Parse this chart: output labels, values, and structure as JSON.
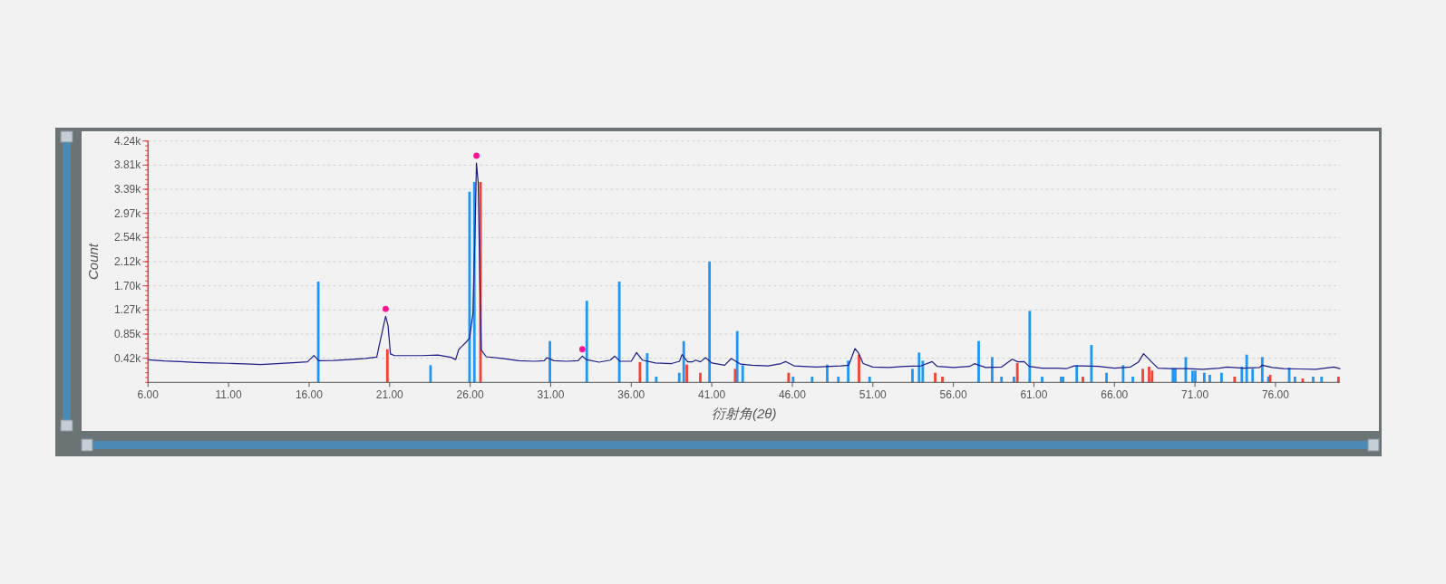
{
  "chart_data": {
    "type": "line",
    "xlabel": "衍射角(2θ)",
    "ylabel": "Count",
    "xlim": [
      6,
      80
    ],
    "ylim": [
      0,
      4238
    ],
    "xticks": [
      {
        "value": 6,
        "label": "6.00"
      },
      {
        "value": 11,
        "label": "11.00"
      },
      {
        "value": 16,
        "label": "16.00"
      },
      {
        "value": 21,
        "label": "21.00"
      },
      {
        "value": 26,
        "label": "26.00"
      },
      {
        "value": 31,
        "label": "31.00"
      },
      {
        "value": 36,
        "label": "36.00"
      },
      {
        "value": 41,
        "label": "41.00"
      },
      {
        "value": 46,
        "label": "46.00"
      },
      {
        "value": 51,
        "label": "51.00"
      },
      {
        "value": 56,
        "label": "56.00"
      },
      {
        "value": 61,
        "label": "61.00"
      },
      {
        "value": 66,
        "label": "66.00"
      },
      {
        "value": 71,
        "label": "71.00"
      },
      {
        "value": 76,
        "label": "76.00"
      }
    ],
    "yticks": [
      {
        "value": 423.8,
        "label": "0.42k"
      },
      {
        "value": 847.6,
        "label": "0.85k"
      },
      {
        "value": 1271.4,
        "label": "1.27k"
      },
      {
        "value": 1695.2,
        "label": "1.70k"
      },
      {
        "value": 2119,
        "label": "2.12k"
      },
      {
        "value": 2542.8,
        "label": "2.54k"
      },
      {
        "value": 2966.6,
        "label": "2.97k"
      },
      {
        "value": 3390.4,
        "label": "3.39k"
      },
      {
        "value": 3814.2,
        "label": "3.81k"
      },
      {
        "value": 4238,
        "label": "4.24k"
      }
    ],
    "grid": "y",
    "series": [
      {
        "type": "bar",
        "color": "#2196f3",
        "x": [
          16.57,
          23.54,
          25.96,
          26.26,
          30.95,
          33.24,
          35.26,
          36.99,
          37.55,
          38.98,
          39.26,
          40.86,
          42.58,
          42.92,
          46.05,
          47.23,
          48.17,
          48.86,
          49.47,
          50.8,
          53.46,
          53.87,
          54.1,
          57.57,
          58.41,
          58.99,
          59.76,
          60.74,
          61.51,
          62.69,
          62.81,
          63.66,
          64.57,
          65.51,
          66.54,
          67.14,
          69.63,
          69.78,
          70.43,
          70.85,
          71.02,
          71.58,
          71.92,
          72.65,
          73.91,
          74.21,
          74.58,
          75.18,
          75.56,
          76.85,
          77.21,
          78.34,
          78.86
        ],
        "values": [
          1770,
          302,
          3348,
          3518,
          725,
          1431,
          1769,
          513,
          100,
          169,
          725,
          2121,
          900,
          302,
          100,
          100,
          312,
          100,
          381,
          100,
          238,
          524,
          381,
          725,
          445,
          100,
          100,
          1256,
          100,
          100,
          100,
          302,
          657,
          169,
          302,
          100,
          248,
          248,
          445,
          207,
          207,
          169,
          132,
          169,
          275,
          487,
          238,
          445,
          100,
          259,
          100,
          100,
          100
        ]
      },
      {
        "type": "bar",
        "color": "#f44336",
        "x": [
          20.86,
          26.64,
          36.54,
          39.45,
          40.29,
          42.45,
          45.77,
          50.14,
          54.87,
          55.32,
          59.97,
          64.04,
          67.76,
          68.15,
          68.34,
          73.46,
          75.67,
          77.69,
          79.91
        ],
        "values": [
          582,
          3518,
          355,
          312,
          169,
          238,
          169,
          487,
          169,
          100,
          339,
          100,
          238,
          275,
          207,
          100,
          132,
          68,
          100
        ]
      },
      {
        "color": "#1c1c8a",
        "x": [
          6.0,
          7.0,
          8.0,
          9.0,
          10.0,
          11.0,
          12.0,
          13.0,
          14.0,
          15.0,
          15.9,
          16.3,
          16.6,
          17.5,
          18.5,
          19.5,
          20.2,
          20.37,
          20.75,
          20.9,
          21.05,
          21.3,
          22.0,
          23.0,
          24.0,
          24.8,
          25.1,
          25.29,
          25.74,
          25.96,
          26.17,
          26.3,
          26.39,
          26.5,
          26.6,
          26.69,
          27.0,
          28.0,
          29.0,
          30.0,
          30.6,
          30.76,
          31.2,
          32.0,
          32.7,
          32.96,
          33.2,
          34.0,
          34.7,
          34.98,
          35.3,
          36.0,
          36.33,
          36.7,
          37.5,
          38.5,
          39.0,
          39.15,
          39.5,
          39.8,
          39.99,
          40.3,
          40.61,
          41.0,
          41.8,
          42.21,
          42.8,
          43.5,
          44.5,
          45.3,
          45.58,
          46.1,
          47.5,
          49.0,
          49.5,
          49.89,
          50.1,
          50.4,
          51.0,
          52.0,
          53.0,
          54.0,
          54.68,
          55.0,
          56.0,
          57.0,
          57.31,
          58.0,
          59.0,
          59.65,
          60.0,
          60.4,
          60.7,
          61.5,
          62.5,
          63.0,
          63.5,
          64.0,
          65.0,
          66.0,
          67.0,
          67.5,
          67.81,
          68.3,
          68.7,
          69.5,
          70.5,
          71.5,
          72.5,
          73.0,
          74.0,
          75.0,
          75.18,
          75.8,
          76.5,
          77.5,
          78.5,
          79.63,
          80.0
        ],
        "values": [
          397,
          375,
          365,
          350,
          340,
          335,
          325,
          312,
          330,
          345,
          360,
          471,
          380,
          385,
          400,
          420,
          445,
          672,
          1160,
          1000,
          500,
          470,
          470,
          470,
          480,
          440,
          400,
          577,
          704,
          779,
          1202,
          2600,
          3852,
          3500,
          1800,
          566,
          450,
          420,
          380,
          370,
          380,
          434,
          380,
          370,
          380,
          461,
          400,
          355,
          390,
          461,
          370,
          370,
          524,
          390,
          340,
          330,
          370,
          487,
          360,
          360,
          391,
          360,
          434,
          340,
          300,
          418,
          320,
          300,
          290,
          330,
          365,
          290,
          270,
          290,
          300,
          593,
          520,
          330,
          270,
          260,
          280,
          290,
          365,
          280,
          260,
          280,
          328,
          260,
          270,
          407,
          360,
          365,
          280,
          250,
          250,
          240,
          290,
          290,
          280,
          250,
          270,
          360,
          503,
          360,
          250,
          240,
          240,
          230,
          250,
          270,
          250,
          260,
          302,
          260,
          240,
          235,
          230,
          270,
          240
        ]
      },
      {
        "type": "scatter",
        "color": "#ff1493",
        "marker": "circle",
        "x": [
          20.75,
          26.39,
          32.96
        ],
        "values": [
          1290,
          3980,
          580
        ]
      }
    ]
  }
}
